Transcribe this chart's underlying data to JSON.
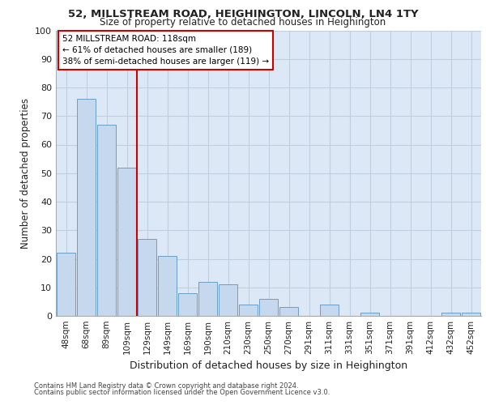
{
  "title1": "52, MILLSTREAM ROAD, HEIGHINGTON, LINCOLN, LN4 1TY",
  "title2": "Size of property relative to detached houses in Heighington",
  "xlabel": "Distribution of detached houses by size in Heighington",
  "ylabel": "Number of detached properties",
  "categories": [
    "48sqm",
    "68sqm",
    "89sqm",
    "109sqm",
    "129sqm",
    "149sqm",
    "169sqm",
    "190sqm",
    "210sqm",
    "230sqm",
    "250sqm",
    "270sqm",
    "291sqm",
    "311sqm",
    "331sqm",
    "351sqm",
    "371sqm",
    "391sqm",
    "412sqm",
    "432sqm",
    "452sqm"
  ],
  "values": [
    22,
    76,
    67,
    52,
    27,
    21,
    8,
    12,
    11,
    4,
    6,
    3,
    0,
    4,
    0,
    1,
    0,
    0,
    0,
    1,
    1
  ],
  "bar_color": "#c5d8ee",
  "bar_edge_color": "#6a9fc8",
  "vline_x": 3.5,
  "vline_color": "#cc0000",
  "annotation_text": "52 MILLSTREAM ROAD: 118sqm\n← 61% of detached houses are smaller (189)\n38% of semi-detached houses are larger (119) →",
  "annotation_box_color": "#ffffff",
  "annotation_box_edge_color": "#cc0000",
  "ylim": [
    0,
    100
  ],
  "yticks": [
    0,
    10,
    20,
    30,
    40,
    50,
    60,
    70,
    80,
    90,
    100
  ],
  "grid_color": "#c0cfe0",
  "background_color": "#dce8f5",
  "footer1": "Contains HM Land Registry data © Crown copyright and database right 2024.",
  "footer2": "Contains public sector information licensed under the Open Government Licence v3.0."
}
